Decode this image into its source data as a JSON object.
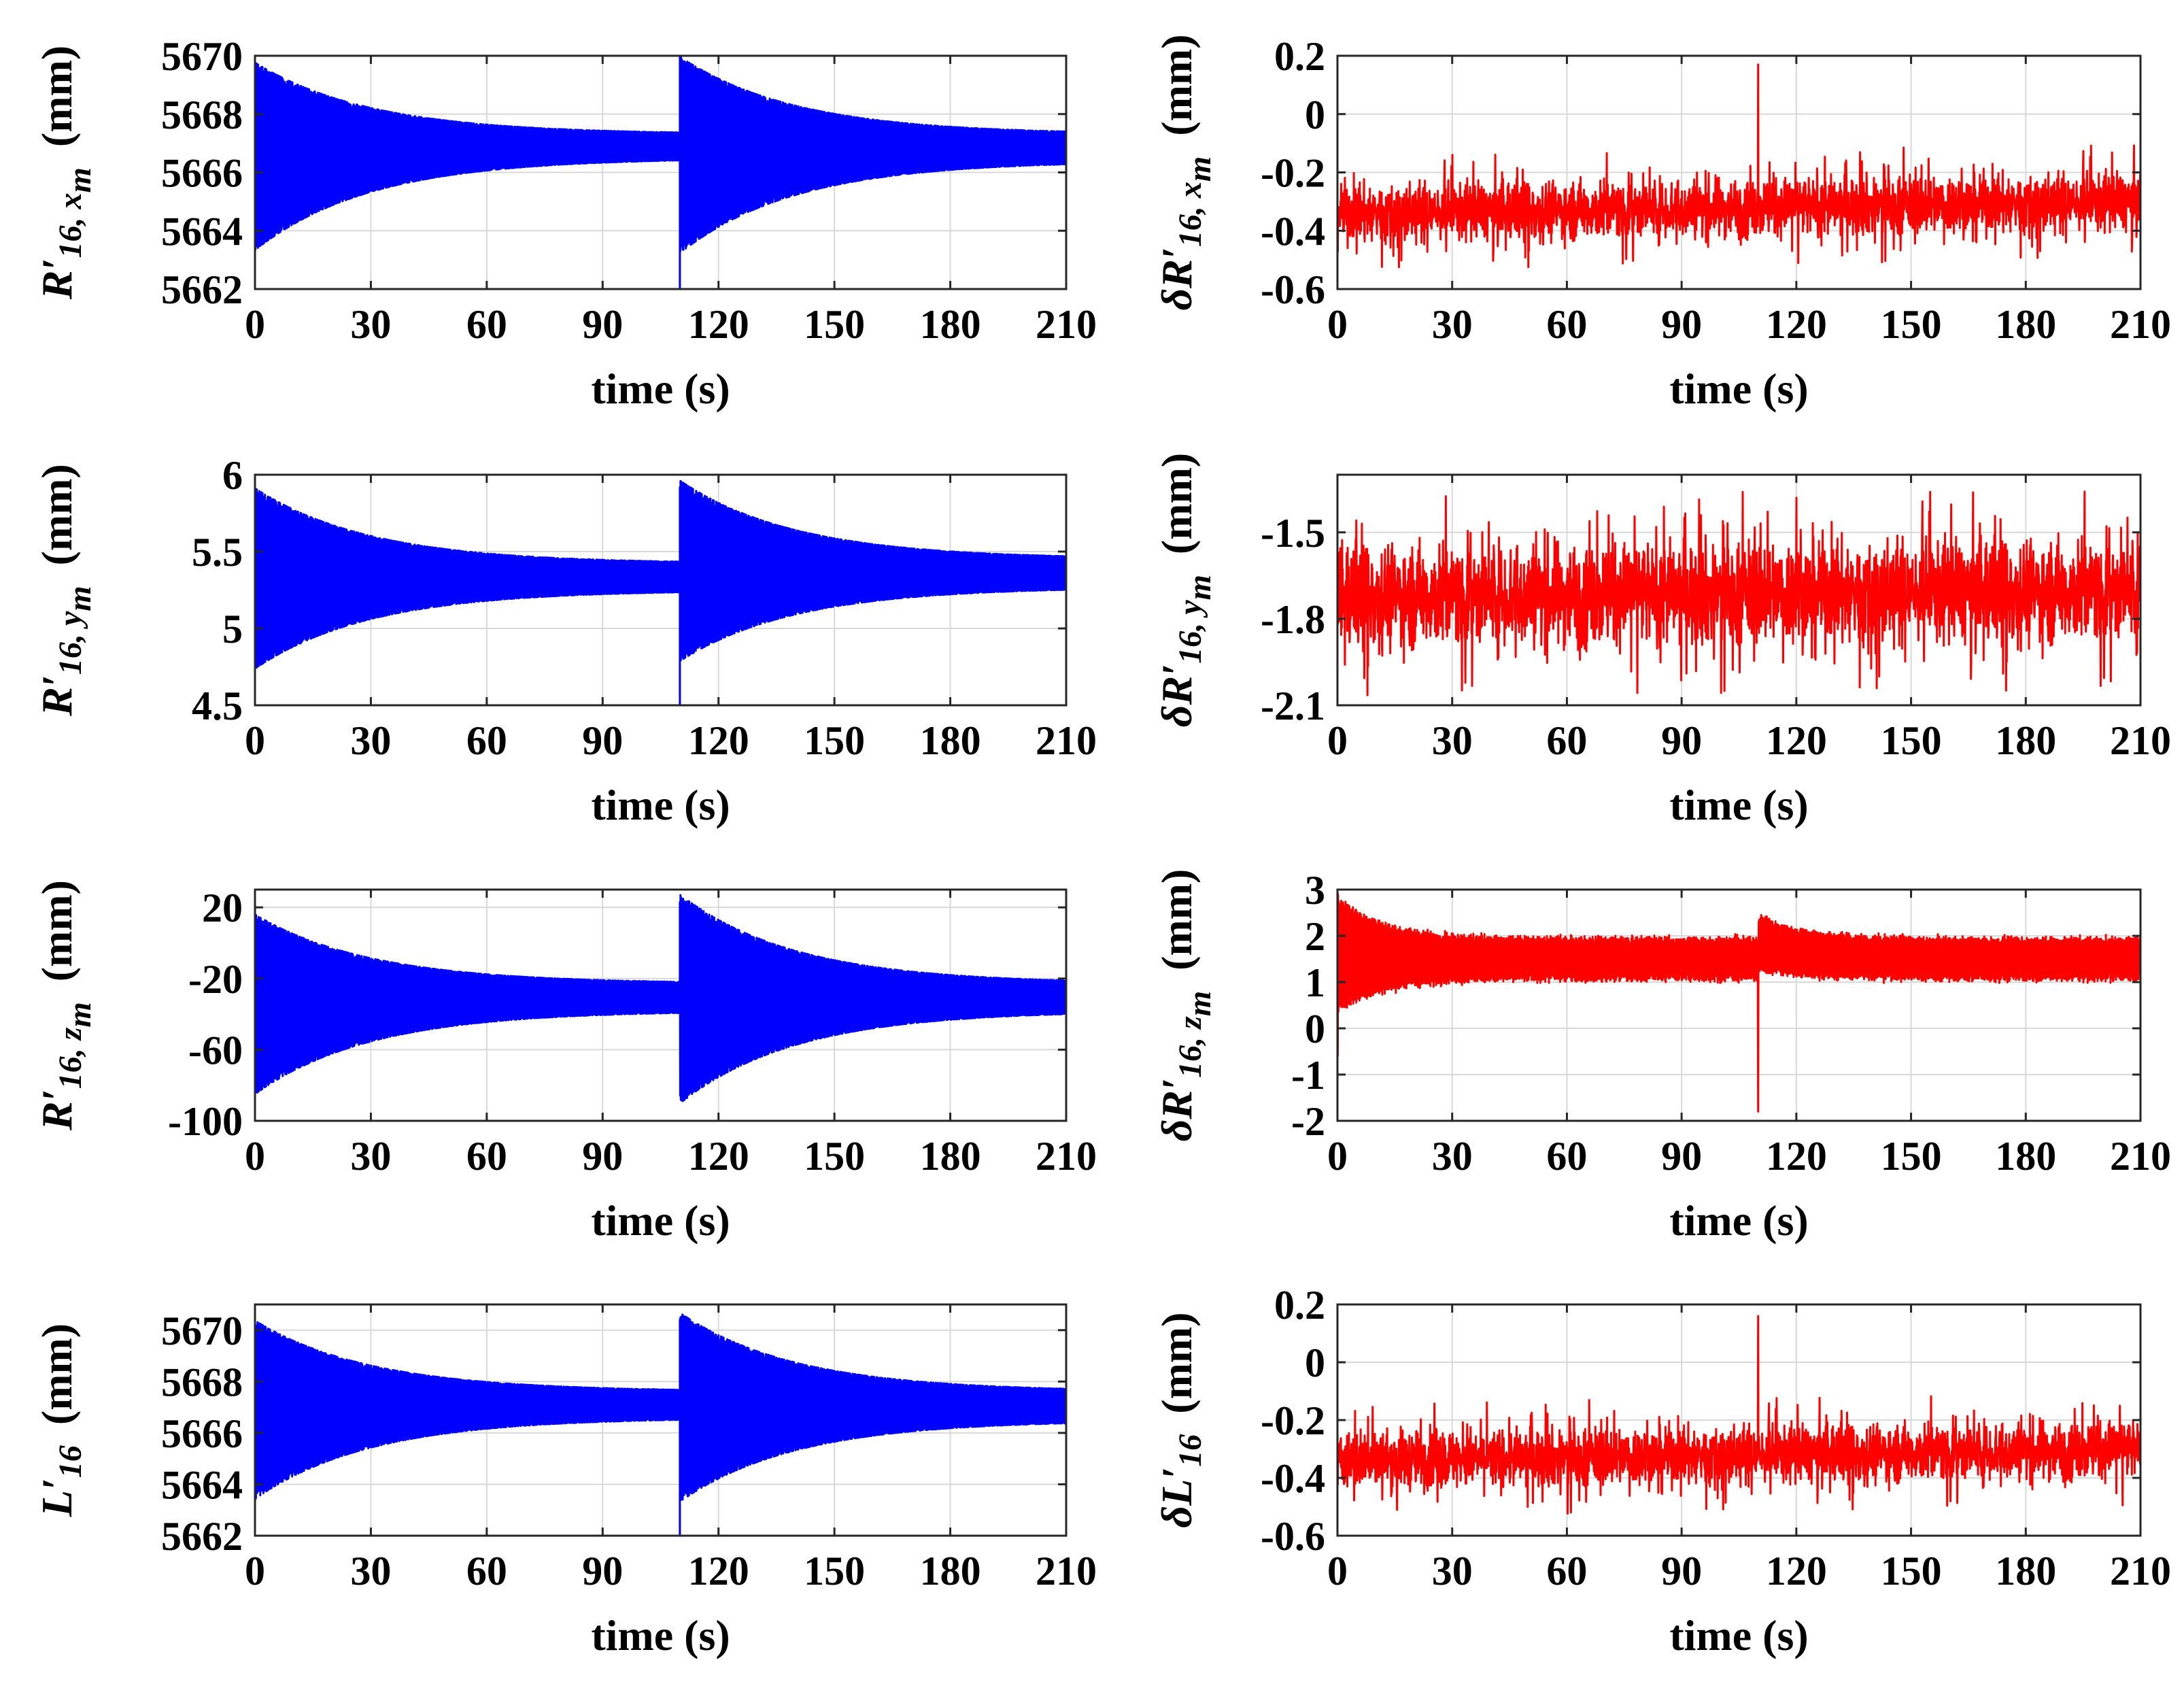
{
  "figure": {
    "xlabel": "time (s)",
    "xticks": [
      0,
      30,
      60,
      90,
      120,
      150,
      180,
      210
    ],
    "xlim": [
      0,
      210
    ]
  },
  "chart_data": [
    {
      "id": "p1",
      "type": "line",
      "color": "#0000FF",
      "ylabel": {
        "main": "R′",
        "sub": "16, x",
        "subsub": "m",
        "unit": "(mm)"
      },
      "xlabel": "time (s)",
      "xlim": [
        0,
        210
      ],
      "ylim": [
        5662,
        5670
      ],
      "yticks": [
        5662,
        5664,
        5666,
        5668,
        5670
      ],
      "series": [
        {
          "name": "R16,xm",
          "kind": "decay_envelope",
          "center": 5666.8,
          "segments": [
            {
              "x0": 0,
              "x1": 110,
              "upper0": 5669.7,
              "upper1": 5667.3,
              "lower0": 5663.4,
              "lower1": 5666.5,
              "spike": 5662.0
            },
            {
              "x0": 110,
              "x1": 210,
              "upper0": 5669.9,
              "upper1": 5667.3,
              "lower0": 5663.3,
              "lower1": 5666.4
            }
          ]
        }
      ]
    },
    {
      "id": "p2",
      "type": "line",
      "color": "#FF0000",
      "ylabel": {
        "main": "δR′",
        "sub": "16, x",
        "subsub": "m",
        "unit": "(mm)"
      },
      "xlabel": "time (s)",
      "xlim": [
        0,
        210
      ],
      "ylim": [
        -0.6,
        0.2
      ],
      "yticks": [
        -0.6,
        -0.4,
        -0.2,
        0,
        0.2
      ],
      "series": [
        {
          "name": "dR16,xm",
          "kind": "noise",
          "mean0": -0.34,
          "mean1": -0.3,
          "band": 0.09,
          "spike_at": 110,
          "spike_value": 0.17,
          "min_value": -0.58
        }
      ]
    },
    {
      "id": "p3",
      "type": "line",
      "color": "#0000FF",
      "ylabel": {
        "main": "R′",
        "sub": "16, y",
        "subsub": "m",
        "unit": "(mm)"
      },
      "xlabel": "time (s)",
      "xlim": [
        0,
        210
      ],
      "ylim": [
        4.5,
        6
      ],
      "yticks": [
        4.5,
        5,
        5.5,
        6
      ],
      "series": [
        {
          "name": "R16,ym",
          "kind": "decay_envelope",
          "center": 5.33,
          "segments": [
            {
              "x0": 0,
              "x1": 110,
              "upper0": 5.9,
              "upper1": 5.42,
              "lower0": 4.75,
              "lower1": 5.25,
              "spike": 4.5
            },
            {
              "x0": 110,
              "x1": 210,
              "upper0": 5.95,
              "upper1": 5.45,
              "lower0": 4.8,
              "lower1": 5.27
            }
          ]
        }
      ]
    },
    {
      "id": "p4",
      "type": "line",
      "color": "#FF0000",
      "ylabel": {
        "main": "δR′",
        "sub": "16, y",
        "subsub": "m",
        "unit": "(mm)"
      },
      "xlabel": "time (s)",
      "xlim": [
        0,
        210
      ],
      "ylim": [
        -2.1,
        -1.3
      ],
      "yticks": [
        -2.1,
        -1.8,
        -1.5
      ],
      "series": [
        {
          "name": "dR16,ym",
          "kind": "noise",
          "mean0": -1.72,
          "mean1": -1.7,
          "band": 0.16,
          "spike_at": 120,
          "spike_value": -1.38,
          "min_value": -2.07
        }
      ]
    },
    {
      "id": "p5",
      "type": "line",
      "color": "#0000FF",
      "ylabel": {
        "main": "R′",
        "sub": "16, z",
        "subsub": "m",
        "unit": "(mm)"
      },
      "xlabel": "time (s)",
      "xlim": [
        0,
        210
      ],
      "ylim": [
        -100,
        30
      ],
      "yticks": [
        -100,
        -60,
        -20,
        20
      ],
      "series": [
        {
          "name": "R16,zm",
          "kind": "decay_envelope",
          "center": -30,
          "segments": [
            {
              "x0": 0,
              "x1": 110,
              "upper0": 15,
              "upper1": -23,
              "lower0": -84,
              "lower1": -38
            },
            {
              "x0": 110,
              "x1": 210,
              "upper0": 26,
              "upper1": -23,
              "lower0": -89,
              "lower1": -38
            }
          ]
        }
      ]
    },
    {
      "id": "p6",
      "type": "line",
      "color": "#FF0000",
      "ylabel": {
        "main": "δR′",
        "sub": "16, z",
        "subsub": "m",
        "unit": "(mm)"
      },
      "xlabel": "time (s)",
      "xlim": [
        0,
        210
      ],
      "ylim": [
        -2,
        3
      ],
      "yticks": [
        -2,
        -1,
        0,
        1,
        2,
        3
      ],
      "series": [
        {
          "name": "dR16,zm",
          "kind": "settling_band",
          "upper0": 2.8,
          "upper_ss": 1.9,
          "lower0": 0.4,
          "lower_ss": 1.1,
          "start_dip": -0.6,
          "dip_at": 110,
          "dip_value": -1.8,
          "bump_upper": 2.4,
          "bump_lower": 1.3
        }
      ]
    },
    {
      "id": "p7",
      "type": "line",
      "color": "#0000FF",
      "ylabel": {
        "main": "L′",
        "sub": "16",
        "subsub": "",
        "unit": "(mm)"
      },
      "xlabel": "time (s)",
      "xlim": [
        0,
        210
      ],
      "ylim": [
        5662,
        5671
      ],
      "yticks": [
        5662,
        5664,
        5666,
        5668,
        5670
      ],
      "series": [
        {
          "name": "L16",
          "kind": "decay_envelope",
          "center": 5667.0,
          "segments": [
            {
              "x0": 0,
              "x1": 110,
              "upper0": 5670.3,
              "upper1": 5667.6,
              "lower0": 5663.5,
              "lower1": 5666.6,
              "spike": 5662.0
            },
            {
              "x0": 110,
              "x1": 210,
              "upper0": 5670.6,
              "upper1": 5667.6,
              "lower0": 5663.4,
              "lower1": 5666.5
            }
          ]
        }
      ]
    },
    {
      "id": "p8",
      "type": "line",
      "color": "#FF0000",
      "ylabel": {
        "main": "δL′",
        "sub": "16",
        "subsub": "",
        "unit": "(mm)"
      },
      "xlabel": "time (s)",
      "xlim": [
        0,
        210
      ],
      "ylim": [
        -0.6,
        0.2
      ],
      "yticks": [
        -0.6,
        -0.4,
        -0.2,
        0,
        0.2
      ],
      "series": [
        {
          "name": "dL16",
          "kind": "noise",
          "mean0": -0.34,
          "mean1": -0.3,
          "band": 0.09,
          "spike_at": 110,
          "spike_value": 0.16,
          "min_value": -0.58
        }
      ]
    }
  ]
}
